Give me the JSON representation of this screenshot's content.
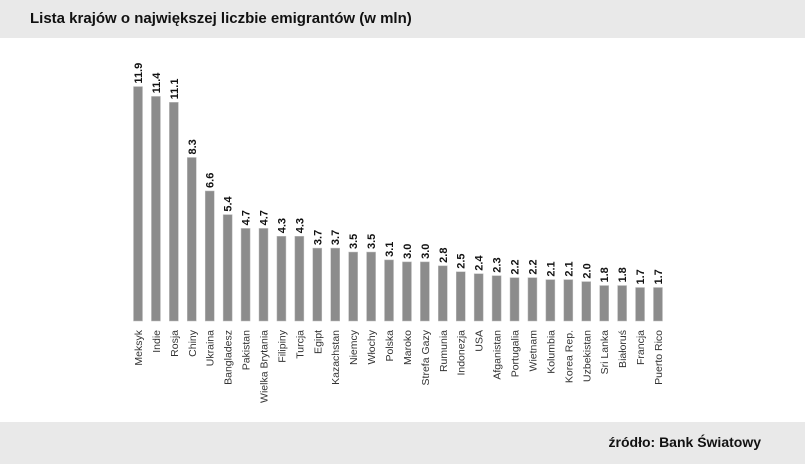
{
  "chart_data": {
    "type": "bar",
    "title": "Lista krajów o największej liczbie emigrantów (w mln)",
    "source": "źródło: Bank Światowy",
    "categories": [
      "Meksyk",
      "Indie",
      "Rosja",
      "Chiny",
      "Ukraina",
      "Bangladesz",
      "Pakistan",
      "Wielka Brytania",
      "Filipiny",
      "Turcja",
      "Egipt",
      "Kazachstan",
      "Niemcy",
      "Włochy",
      "Polska",
      "Maroko",
      "Strefa Gazy",
      "Rumunia",
      "Indonezja",
      "USA",
      "Afganistan",
      "Portugalia",
      "Wietnam",
      "Kolumbia",
      "Korea Rep.",
      "Uzbekistan",
      "Sri Lanka",
      "Białoruś",
      "Francja",
      "Puerto Rico"
    ],
    "values": [
      11.9,
      11.4,
      11.1,
      8.3,
      6.6,
      5.4,
      4.7,
      4.7,
      4.3,
      4.3,
      3.7,
      3.7,
      3.5,
      3.5,
      3.1,
      3.0,
      3.0,
      2.8,
      2.5,
      2.4,
      2.3,
      2.2,
      2.2,
      2.1,
      2.1,
      2.0,
      1.8,
      1.8,
      1.7,
      1.7
    ],
    "value_labels": [
      "11.9",
      "11.4",
      "11.1",
      "8.3",
      "6.6",
      "5.4",
      "4.7",
      "4.7",
      "4.3",
      "4.3",
      "3.7",
      "3.7",
      "3.5",
      "3.5",
      "3.1",
      "3.0",
      "3.0",
      "2.8",
      "2.5",
      "2.4",
      "2.3",
      "2.2",
      "2.2",
      "2.1",
      "2.1",
      "2.0",
      "1.8",
      "1.8",
      "1.7",
      "1.7"
    ],
    "xlabel": "",
    "ylabel": "",
    "ylim": [
      0,
      12
    ],
    "grid": false,
    "bar_color": "#8c8c8c"
  }
}
